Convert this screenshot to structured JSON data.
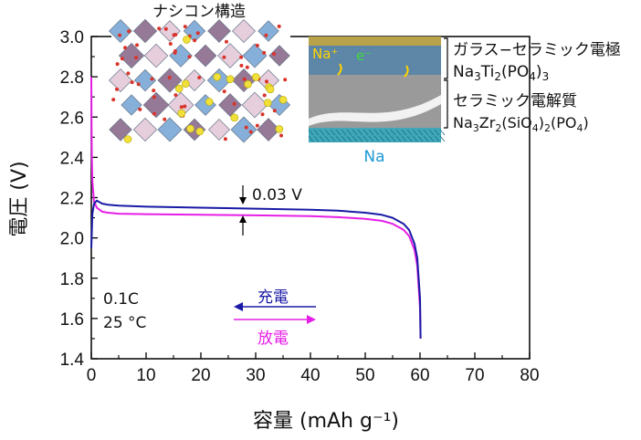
{
  "chart_data": {
    "type": "line",
    "xlabel": "容量 (mAh g⁻¹)",
    "ylabel": "電圧 (V)",
    "xlim": [
      0,
      80
    ],
    "ylim": [
      1.4,
      3.0
    ],
    "xticks": [
      "0",
      "10",
      "20",
      "30",
      "40",
      "50",
      "60",
      "70",
      "80"
    ],
    "yticks": [
      "1.4",
      "1.6",
      "1.8",
      "2.0",
      "2.2",
      "2.4",
      "2.6",
      "2.8",
      "3.0"
    ],
    "series": [
      {
        "name": "充電",
        "color": "#1a1aa6",
        "x": [
          0,
          0.2,
          0.5,
          1,
          2,
          3,
          5,
          10,
          20,
          30,
          40,
          45,
          50,
          53,
          55,
          57,
          58,
          59,
          59.5,
          60,
          60.1
        ],
        "y": [
          1.95,
          2.12,
          2.17,
          2.185,
          2.17,
          2.165,
          2.16,
          2.155,
          2.15,
          2.145,
          2.14,
          2.135,
          2.125,
          2.115,
          2.1,
          2.07,
          2.04,
          1.97,
          1.9,
          1.7,
          1.5
        ]
      },
      {
        "name": "放電",
        "color": "#e61ee6",
        "x": [
          0,
          0.05,
          0.1,
          0.2,
          0.5,
          1,
          2,
          3,
          5,
          10,
          20,
          30,
          40,
          45,
          50,
          53,
          55,
          57,
          58,
          59,
          59.5,
          60,
          60.1
        ],
        "y": [
          2.8,
          2.55,
          2.4,
          2.28,
          2.18,
          2.15,
          2.13,
          2.125,
          2.12,
          2.118,
          2.115,
          2.112,
          2.108,
          2.103,
          2.095,
          2.085,
          2.07,
          2.04,
          2.01,
          1.94,
          1.86,
          1.65,
          1.5
        ]
      }
    ],
    "annotations": {
      "gap": "0.03 V",
      "rate": "0.1C",
      "temperature": "25 °C",
      "charge": "充電",
      "discharge": "放電"
    }
  },
  "insets": {
    "crystal_title": "ナシコン構造",
    "electrode_label": "ガラス−セラミック電極",
    "electrode_formula": {
      "a": "Na",
      "s1": "3",
      "b": "Ti",
      "s2": "2",
      "c": "(PO",
      "s3": "4",
      "d": ")",
      "s4": "3"
    },
    "electrolyte_label": "セラミック電解質",
    "electrolyte_formula": {
      "a": "Na",
      "s1": "3",
      "b": "Zr",
      "s2": "2",
      "c": "(SiO",
      "s3": "4",
      "d": ")",
      "s4": "2",
      "e": "(PO",
      "s5": "4",
      "f": ")"
    },
    "na_label": "Na",
    "na_ion": "Na⁺",
    "electron": "e⁻"
  }
}
